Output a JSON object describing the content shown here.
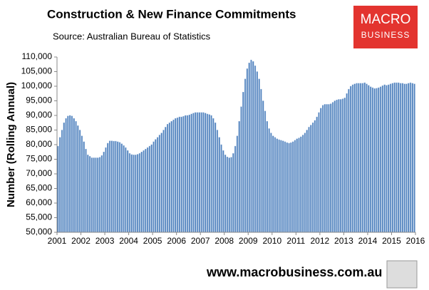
{
  "chart_data": {
    "type": "bar",
    "title": "Construction & New Finance Commitments",
    "subtitle": "Source: Australian  Bureau of Statistics",
    "y_label": "Number (Rolling Annual)",
    "logo": [
      "MACRO",
      "BUSINESS"
    ],
    "footer": "www.macrobusiness.com.au",
    "color": "#4f81bd",
    "xlim": [
      2001,
      2016
    ],
    "xticks": [
      2001,
      2002,
      2003,
      2004,
      2005,
      2006,
      2007,
      2008,
      2009,
      2010,
      2011,
      2012,
      2013,
      2014,
      2015,
      2016
    ],
    "ylim": [
      50000,
      110000
    ],
    "yticks": [
      {
        "value": 50000,
        "label": "50,000"
      },
      {
        "value": 55000,
        "label": "55,000"
      },
      {
        "value": 60000,
        "label": "60,000"
      },
      {
        "value": 65000,
        "label": "65,000"
      },
      {
        "value": 70000,
        "label": "70,000"
      },
      {
        "value": 75000,
        "label": "75,000"
      },
      {
        "value": 80000,
        "label": "80,000"
      },
      {
        "value": 85000,
        "label": "85,000"
      },
      {
        "value": 90000,
        "label": "90,000"
      },
      {
        "value": 95000,
        "label": "95,000"
      },
      {
        "value": 100000,
        "label": "100,000"
      },
      {
        "value": 105000,
        "label": "105,000"
      },
      {
        "value": 110000,
        "label": "110,000"
      }
    ],
    "values": [
      79500,
      82500,
      85000,
      87500,
      89000,
      89800,
      90000,
      89800,
      89000,
      88000,
      86500,
      85000,
      83000,
      81000,
      78500,
      76500,
      76000,
      75500,
      75500,
      75500,
      75500,
      75700,
      76300,
      77500,
      79000,
      80500,
      81300,
      81300,
      81200,
      81200,
      81000,
      80800,
      80300,
      79700,
      79000,
      78000,
      77000,
      76600,
      76500,
      76500,
      76700,
      77000,
      77500,
      78000,
      78500,
      79000,
      79500,
      80000,
      81000,
      81800,
      82500,
      83300,
      84000,
      85000,
      86000,
      87000,
      87500,
      88000,
      88500,
      89000,
      89200,
      89500,
      89500,
      89700,
      90000,
      90000,
      90200,
      90500,
      90800,
      91000,
      91000,
      91000,
      91000,
      91000,
      90800,
      90500,
      90300,
      90000,
      89000,
      87500,
      85000,
      82500,
      80000,
      78000,
      76500,
      75800,
      75500,
      75700,
      77000,
      79500,
      83000,
      88000,
      93000,
      98000,
      102500,
      106000,
      108000,
      109000,
      108500,
      107000,
      105000,
      102500,
      99000,
      95000,
      91500,
      88000,
      85500,
      84000,
      83000,
      82500,
      82000,
      81700,
      81500,
      81300,
      81000,
      80700,
      80500,
      80700,
      81000,
      81500,
      82000,
      82300,
      82700,
      83300,
      84000,
      85000,
      86000,
      86700,
      87500,
      88300,
      89500,
      91000,
      92500,
      93500,
      93800,
      93800,
      93800,
      94000,
      94500,
      95000,
      95300,
      95500,
      95500,
      95700,
      96000,
      97500,
      99000,
      100000,
      100500,
      100800,
      101000,
      101000,
      101000,
      101000,
      101200,
      100800,
      100300,
      99800,
      99500,
      99200,
      99300,
      99500,
      99800,
      100200,
      100500,
      100300,
      100500,
      100800,
      101000,
      101200,
      101200,
      101200,
      101000,
      101000,
      100800,
      100800,
      101000,
      101200,
      101000,
      100800
    ]
  }
}
